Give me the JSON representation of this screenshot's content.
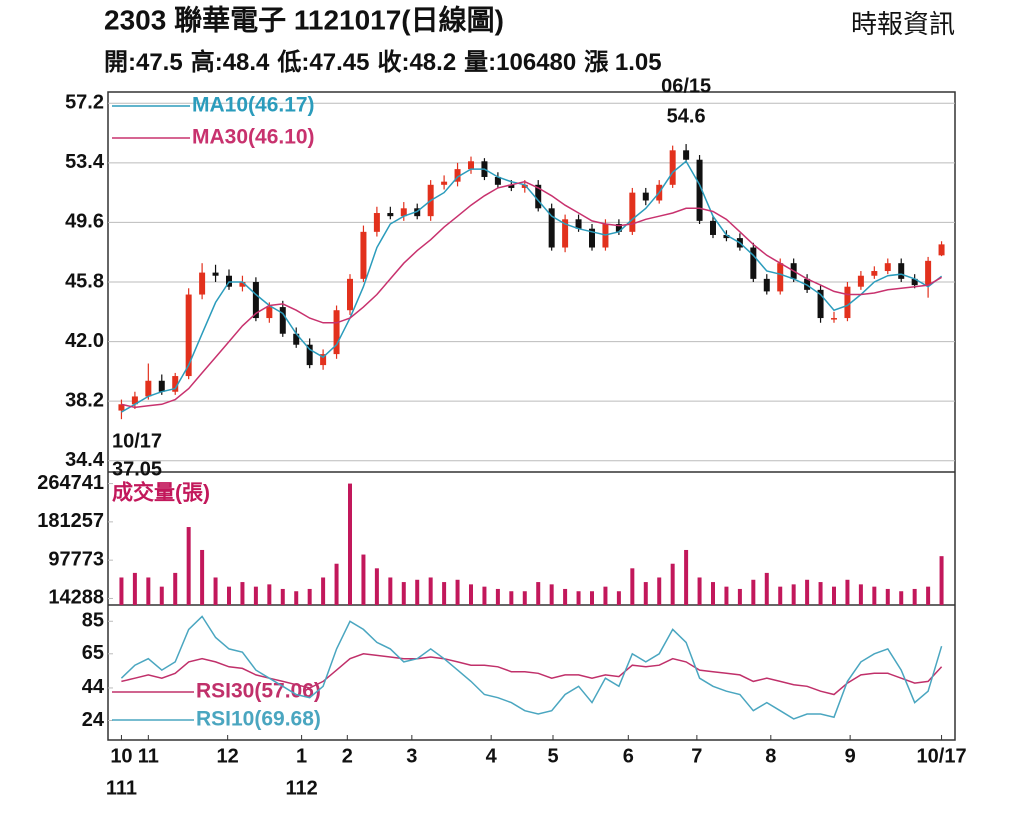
{
  "header": {
    "title": "2303  聯華電子 1121017(日線圖)",
    "source": "時報資訊",
    "quote": [
      "開:47.5",
      "高:48.4",
      "低:47.45",
      "收:48.2",
      "量:106480",
      "漲 1.05"
    ]
  },
  "chart_data": [
    {
      "type": "candlestick",
      "up_color": "#e2311d",
      "down_color": "#111111",
      "grid": true,
      "ylim": [
        33.68,
        57.92
      ],
      "yticks": [
        34.4,
        38.2,
        {
          "value": 42,
          "label": "42.0"
        },
        45.8,
        49.6,
        53.4,
        57.2
      ],
      "xlim": [
        -1,
        62
      ],
      "high_date": "06/15",
      "low_date": "10/17",
      "open": [
        37.6,
        38.0,
        38.5,
        39.5,
        38.8,
        39.8,
        45.0,
        46.4,
        46.2,
        45.5,
        45.8,
        43.5,
        44.2,
        42.5,
        41.8,
        40.5,
        41.2,
        44.0,
        46.0,
        49.0,
        50.2,
        50.0,
        50.5,
        50.0,
        52.0,
        52.2,
        53.0,
        53.5,
        52.5,
        52.0,
        51.8,
        52.0,
        50.5,
        48.0,
        49.8,
        49.2,
        48.0,
        49.5,
        49.0,
        51.5,
        51.0,
        52.0,
        54.2,
        53.6,
        49.7,
        48.8,
        48.6,
        48.0,
        46.0,
        45.2,
        47.0,
        46.0,
        45.3,
        43.5,
        43.5,
        45.5,
        46.2,
        46.5,
        47.0,
        46.0,
        45.6,
        47.5
      ],
      "high": [
        38.3,
        38.8,
        40.6,
        39.9,
        40.0,
        45.4,
        47.0,
        46.9,
        46.6,
        46.2,
        46.1,
        44.5,
        44.6,
        42.9,
        42.2,
        41.5,
        44.3,
        46.3,
        49.4,
        50.6,
        50.6,
        50.9,
        50.8,
        52.3,
        52.6,
        53.4,
        53.8,
        53.7,
        52.8,
        52.3,
        52.3,
        52.3,
        50.8,
        50.1,
        50.1,
        49.5,
        49.8,
        49.8,
        51.8,
        51.8,
        52.3,
        54.5,
        54.6,
        53.9,
        50.0,
        49.1,
        48.9,
        48.3,
        46.3,
        47.3,
        47.3,
        46.3,
        45.6,
        43.9,
        45.8,
        46.5,
        46.8,
        47.3,
        47.3,
        46.3,
        47.4,
        48.4
      ],
      "low": [
        37.05,
        37.7,
        38.3,
        38.6,
        38.6,
        39.6,
        44.7,
        45.8,
        45.3,
        45.2,
        43.3,
        43.2,
        42.3,
        41.6,
        40.3,
        40.2,
        40.9,
        43.7,
        45.8,
        48.7,
        49.8,
        49.7,
        49.8,
        49.7,
        51.7,
        51.9,
        52.7,
        52.3,
        51.8,
        51.6,
        51.5,
        50.3,
        47.8,
        47.7,
        49.0,
        47.8,
        47.8,
        48.8,
        48.8,
        50.7,
        50.8,
        51.8,
        53.4,
        49.5,
        48.6,
        48.4,
        47.8,
        45.8,
        45.0,
        45.0,
        45.8,
        45.1,
        43.2,
        43.2,
        43.3,
        45.3,
        46.0,
        46.3,
        45.8,
        45.4,
        44.8,
        47.45
      ],
      "close": [
        38.0,
        38.5,
        39.5,
        38.8,
        39.8,
        45.0,
        46.4,
        46.2,
        45.5,
        45.8,
        43.5,
        44.2,
        42.5,
        41.8,
        40.5,
        41.2,
        44.0,
        46.0,
        49.0,
        50.2,
        50.0,
        50.5,
        50.0,
        52.0,
        52.2,
        53.0,
        53.5,
        52.5,
        52.0,
        51.8,
        52.0,
        50.5,
        48.0,
        49.8,
        49.2,
        48.0,
        49.5,
        49.0,
        51.5,
        51.0,
        52.0,
        54.2,
        53.6,
        49.7,
        48.8,
        48.6,
        48.0,
        46.0,
        45.2,
        47.0,
        46.0,
        45.3,
        43.5,
        43.5,
        45.5,
        46.2,
        46.5,
        47.0,
        46.0,
        45.6,
        47.15,
        48.2
      ],
      "series": [
        {
          "name": "MA10(46.17)",
          "color": "#2b9cbc",
          "values": [
            37.5,
            38,
            38.5,
            38.8,
            39,
            40.5,
            42.5,
            44.5,
            45.8,
            45.8,
            45,
            44.3,
            43.8,
            42.5,
            41.5,
            41,
            41.8,
            43.5,
            45.5,
            48,
            49.5,
            50,
            50.3,
            51,
            51.5,
            52.5,
            53,
            53,
            52.5,
            52.2,
            52,
            51,
            50,
            49.5,
            49.2,
            49,
            48.8,
            49,
            49.8,
            50.5,
            51.5,
            52.8,
            53.5,
            52,
            50,
            48.8,
            48.3,
            47.5,
            46.5,
            46.3,
            46,
            45.6,
            45,
            44,
            44.3,
            45,
            45.8,
            46.2,
            46.3,
            46,
            45.5,
            46.17
          ]
        },
        {
          "name": "MA30(46.10)",
          "color": "#c8326e",
          "values": [
            38,
            37.8,
            37.9,
            38,
            38.3,
            39,
            40,
            41,
            42,
            43,
            43.8,
            44.3,
            44.4,
            44,
            43.5,
            43.2,
            43.2,
            43.5,
            44.2,
            45,
            46,
            47,
            47.8,
            48.5,
            49.3,
            50,
            50.7,
            51.3,
            51.8,
            52,
            52.2,
            51.8,
            51.3,
            50.7,
            50.2,
            49.7,
            49.5,
            49.4,
            49.5,
            49.8,
            50,
            50.2,
            50.5,
            50.5,
            50.3,
            49.8,
            49,
            48.2,
            47.5,
            47,
            46.5,
            46,
            45.6,
            45.2,
            45,
            45,
            45.1,
            45.3,
            45.4,
            45.5,
            45.6,
            46.1
          ]
        }
      ]
    },
    {
      "type": "bar",
      "title": "成交量(張)",
      "color": "#c2185b",
      "ylim": [
        0,
        290000
      ],
      "yticks": [
        14288,
        97773,
        181257,
        264741
      ],
      "xlim": [
        -1,
        62
      ],
      "values": [
        60000,
        70000,
        60000,
        40000,
        70000,
        170000,
        120000,
        60000,
        40000,
        50000,
        40000,
        45000,
        35000,
        30000,
        35000,
        60000,
        90000,
        264741,
        110000,
        80000,
        60000,
        50000,
        55000,
        60000,
        50000,
        55000,
        45000,
        40000,
        35000,
        30000,
        30000,
        50000,
        45000,
        35000,
        30000,
        30000,
        40000,
        30000,
        80000,
        50000,
        60000,
        90000,
        120000,
        60000,
        50000,
        40000,
        35000,
        55000,
        70000,
        40000,
        45000,
        55000,
        50000,
        40000,
        55000,
        45000,
        40000,
        35000,
        30000,
        35000,
        40000,
        106480
      ]
    },
    {
      "type": "line",
      "ylim": [
        12,
        95
      ],
      "yticks": [
        24,
        44,
        65,
        85
      ],
      "xlim": [
        -1,
        62
      ],
      "xticks": [
        {
          "value": 0,
          "label": "10"
        },
        {
          "value": 2,
          "label": "11"
        },
        {
          "value": 7.9,
          "label": "12"
        },
        {
          "value": 13.4,
          "label": "1"
        },
        {
          "value": 16.8,
          "label": "2"
        },
        {
          "value": 21.6,
          "label": "3"
        },
        {
          "value": 27.5,
          "label": "4"
        },
        {
          "value": 32.1,
          "label": "5"
        },
        {
          "value": 37.7,
          "label": "6"
        },
        {
          "value": 42.8,
          "label": "7"
        },
        {
          "value": 48.3,
          "label": "8"
        },
        {
          "value": 54.2,
          "label": "9"
        },
        {
          "value": 61,
          "label": "10/17"
        }
      ],
      "year_ticks": [
        {
          "value": 0,
          "label": "111"
        },
        {
          "value": 13.4,
          "label": "112"
        }
      ],
      "series": [
        {
          "name": "RSI30(57.06)",
          "color": "#c0306a",
          "values": [
            48,
            50,
            52,
            50,
            53,
            60,
            62,
            60,
            57,
            56,
            52,
            50,
            48,
            46,
            44,
            48,
            55,
            62,
            65,
            64,
            63,
            62,
            62,
            63,
            62,
            60,
            58,
            58,
            57,
            54,
            54,
            53,
            50,
            52,
            52,
            50,
            52,
            51,
            58,
            57,
            58,
            62,
            60,
            55,
            54,
            53,
            52,
            48,
            50,
            48,
            46,
            45,
            42,
            40,
            47,
            52,
            53,
            53,
            50,
            47,
            48,
            57.06
          ]
        },
        {
          "name": "RSI10(69.68)",
          "color": "#4aa6c0",
          "values": [
            50,
            58,
            62,
            55,
            60,
            80,
            88,
            75,
            68,
            66,
            55,
            50,
            45,
            40,
            38,
            45,
            68,
            85,
            80,
            72,
            68,
            60,
            62,
            68,
            62,
            55,
            48,
            40,
            38,
            35,
            30,
            28,
            30,
            40,
            45,
            35,
            50,
            45,
            65,
            60,
            65,
            80,
            72,
            50,
            45,
            42,
            40,
            30,
            35,
            30,
            25,
            28,
            28,
            26,
            48,
            60,
            65,
            68,
            55,
            35,
            42,
            69.68
          ]
        }
      ]
    }
  ]
}
